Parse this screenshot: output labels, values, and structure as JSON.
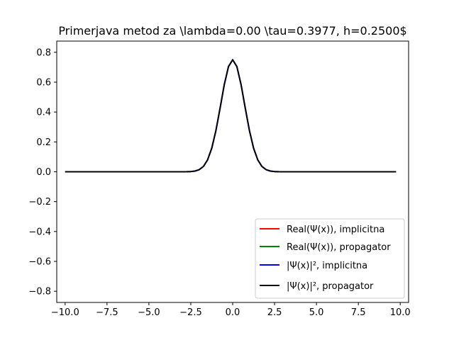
{
  "chart_data": {
    "type": "line",
    "title": "Primerjava metod za \\lambda=0.00 \\tau=0.3977, h=0.2500$",
    "xlabel": "",
    "ylabel": "",
    "xlim": [
      -10.5,
      10.5
    ],
    "ylim": [
      -0.875,
      0.875
    ],
    "xticks": [
      -10.0,
      -7.5,
      -5.0,
      -2.5,
      0.0,
      2.5,
      5.0,
      7.5,
      10.0
    ],
    "xtick_labels": [
      "−10.0",
      "−7.5",
      "−5.0",
      "−2.5",
      "0.0",
      "2.5",
      "5.0",
      "7.5",
      "10.0"
    ],
    "yticks": [
      -0.8,
      -0.6,
      -0.4,
      -0.2,
      0.0,
      0.2,
      0.4,
      0.6,
      0.8
    ],
    "ytick_labels": [
      "−0.8",
      "−0.6",
      "−0.4",
      "−0.2",
      "0.0",
      "0.2",
      "0.4",
      "0.6",
      "0.8"
    ],
    "grid": false,
    "legend_position": "lower-right",
    "x_range": [
      -10.0,
      9.75
    ],
    "x_step": 0.25,
    "series": [
      {
        "name": "Real(Ψ(x)), implicitna",
        "color": "#ff0000",
        "peak": 0.75,
        "peak_x": 0.0,
        "width": 1.0,
        "visible": false
      },
      {
        "name": "Real(Ψ(x)), propagator",
        "color": "#008000",
        "peak": 0.75,
        "peak_x": 0.0,
        "width": 1.0,
        "visible": false
      },
      {
        "name": "|Ψ(x)|², implicitna",
        "color": "#0000ff",
        "peak": 0.75,
        "peak_x": 0.0,
        "width": 1.0,
        "visible": true
      },
      {
        "name": "|Ψ(x)|², propagator",
        "color": "#000000",
        "peak": 0.75,
        "peak_x": 0.0,
        "width": 1.0,
        "visible": true
      }
    ]
  }
}
